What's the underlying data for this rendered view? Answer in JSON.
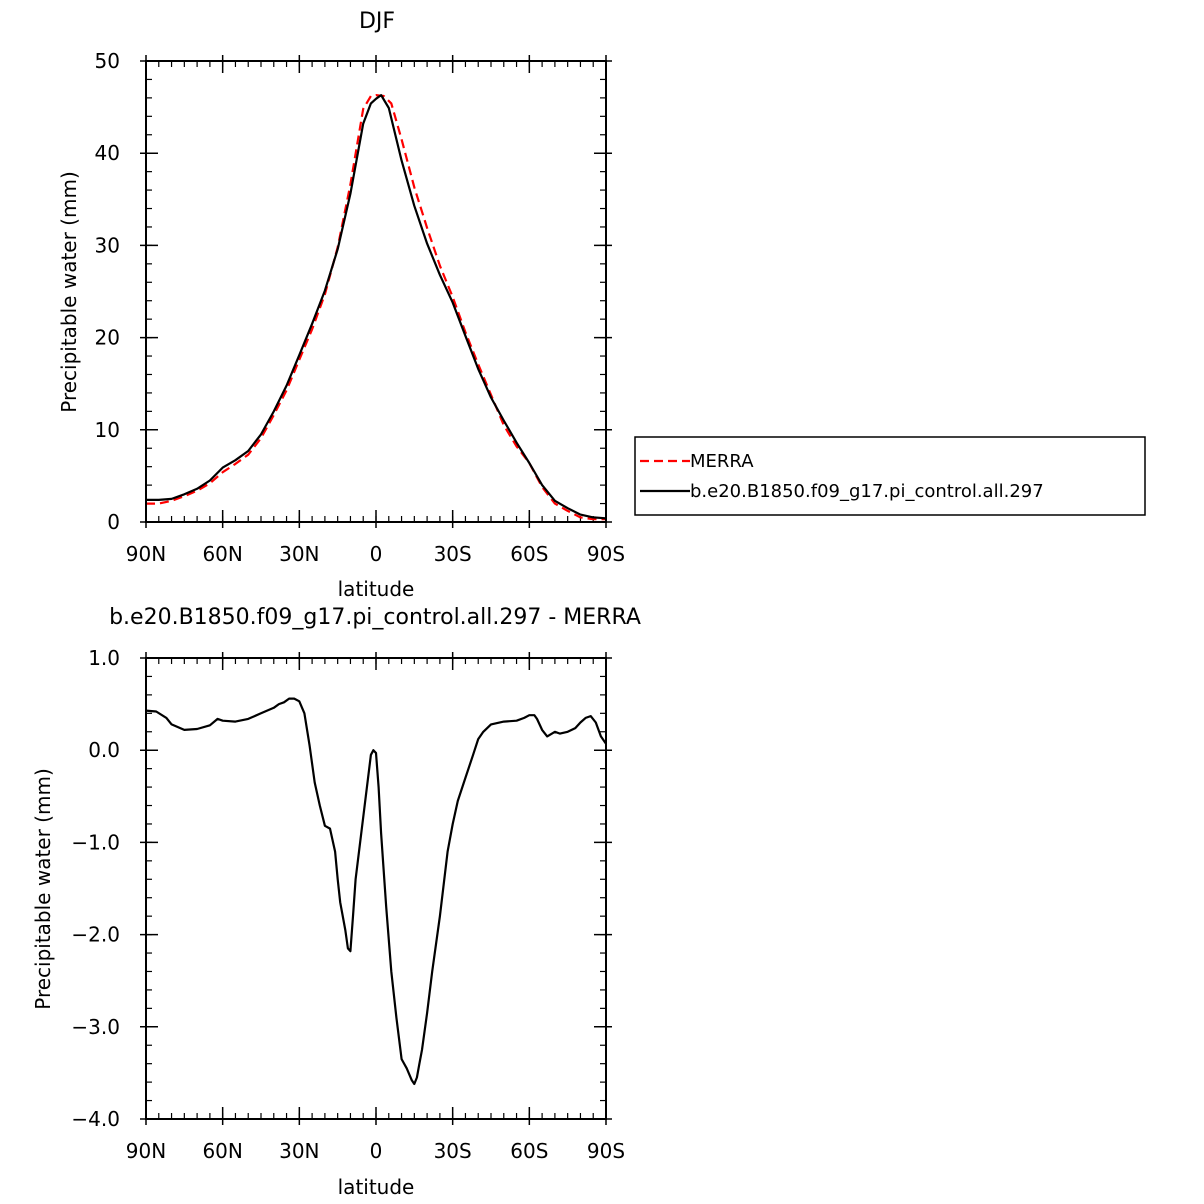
{
  "chart_data": [
    {
      "type": "line",
      "title": "DJF",
      "xlabel": "latitude",
      "ylabel": "Precipitable water (mm)",
      "xlim": [
        90,
        -90
      ],
      "ylim": [
        0,
        50
      ],
      "x_direction": "90N (left) to 90S (right); values are latitude in degrees, north positive",
      "xtick_values": [
        90,
        60,
        30,
        0,
        -30,
        -60,
        -90
      ],
      "xtick_labels": [
        "90N",
        "60N",
        "30N",
        "0",
        "30S",
        "60S",
        "90S"
      ],
      "ytick_values": [
        0,
        10,
        20,
        30,
        40,
        50
      ],
      "ytick_labels": [
        "0",
        "10",
        "20",
        "30",
        "40",
        "50"
      ],
      "legend_position": "right",
      "series": [
        {
          "name": "MERRA",
          "color": "#ff0000",
          "dash": "dashed",
          "x": [
            90,
            85,
            80,
            75,
            70,
            65,
            60,
            55,
            50,
            45,
            40,
            35,
            30,
            25,
            20,
            15,
            10,
            5,
            2,
            0,
            -3,
            -6,
            -10,
            -15,
            -20,
            -25,
            -30,
            -35,
            -40,
            -45,
            -50,
            -55,
            -60,
            -65,
            -70,
            -75,
            -80,
            -85,
            -90
          ],
          "y": [
            2.0,
            2.0,
            2.3,
            2.8,
            3.4,
            4.2,
            5.4,
            6.3,
            7.3,
            9.1,
            11.6,
            14.3,
            17.6,
            20.9,
            24.7,
            29.8,
            36.6,
            44.8,
            46.2,
            46.3,
            46.2,
            45.4,
            41.5,
            36.3,
            31.9,
            27.8,
            24.4,
            20.6,
            17.1,
            13.8,
            10.5,
            8.2,
            6.4,
            3.8,
            2.0,
            1.2,
            0.5,
            0.3,
            0.3
          ]
        },
        {
          "name": "b.e20.B1850.f09_g17.pi_control.all.297",
          "color": "#000000",
          "dash": "solid",
          "x": [
            90,
            85,
            80,
            75,
            70,
            65,
            60,
            55,
            50,
            45,
            40,
            35,
            30,
            25,
            20,
            15,
            10,
            5,
            2,
            0,
            -2,
            -5,
            -10,
            -15,
            -20,
            -25,
            -30,
            -35,
            -40,
            -45,
            -50,
            -55,
            -60,
            -65,
            -70,
            -75,
            -80,
            -85,
            -90
          ],
          "y": [
            2.4,
            2.4,
            2.5,
            3.0,
            3.6,
            4.5,
            5.9,
            6.7,
            7.7,
            9.5,
            12.0,
            14.8,
            18.1,
            21.5,
            25.1,
            29.6,
            35.6,
            43.2,
            45.4,
            45.9,
            46.3,
            44.9,
            39.2,
            34.3,
            30.2,
            26.8,
            23.8,
            20.2,
            16.6,
            13.5,
            11.0,
            8.6,
            6.4,
            4.0,
            2.3,
            1.5,
            0.8,
            0.5,
            0.4
          ]
        }
      ]
    },
    {
      "type": "line",
      "title": "b.e20.B1850.f09_g17.pi_control.all.297 - MERRA",
      "xlabel": "latitude",
      "ylabel": "Precipitable water (mm)",
      "xlim": [
        90,
        -90
      ],
      "ylim": [
        -4.0,
        1.0
      ],
      "xtick_values": [
        90,
        60,
        30,
        0,
        -30,
        -60,
        -90
      ],
      "xtick_labels": [
        "90N",
        "60N",
        "30N",
        "0",
        "30S",
        "60S",
        "90S"
      ],
      "ytick_values": [
        1.0,
        0.0,
        -1.0,
        -2.0,
        -3.0,
        -4.0
      ],
      "ytick_labels": [
        "1.0",
        "0.0",
        "−1.0",
        "−2.0",
        "−3.0",
        "−4.0"
      ],
      "series": [
        {
          "color": "#000000",
          "x": [
            90,
            86,
            82,
            80,
            75,
            70,
            65,
            62,
            60,
            55,
            50,
            45,
            40,
            38,
            36,
            34,
            33,
            32,
            30,
            28,
            26,
            24,
            22,
            20,
            18,
            16,
            15,
            14,
            12,
            11,
            10,
            9,
            8,
            6,
            4,
            2,
            1,
            0,
            -1,
            -2,
            -4,
            -6,
            -8,
            -10,
            -12,
            -14,
            -15,
            -16,
            -17,
            -18,
            -20,
            -22,
            -25,
            -28,
            -30,
            -32,
            -35,
            -38,
            -40,
            -42,
            -45,
            -50,
            -55,
            -58,
            -60,
            -62,
            -63,
            -65,
            -67,
            -70,
            -72,
            -75,
            -78,
            -80,
            -82,
            -84,
            -86,
            -88,
            -90
          ],
          "y": [
            0.43,
            0.42,
            0.35,
            0.28,
            0.22,
            0.23,
            0.27,
            0.34,
            0.32,
            0.31,
            0.34,
            0.4,
            0.46,
            0.5,
            0.52,
            0.56,
            0.56,
            0.56,
            0.53,
            0.4,
            0.05,
            -0.35,
            -0.6,
            -0.82,
            -0.85,
            -1.1,
            -1.4,
            -1.65,
            -1.95,
            -2.15,
            -2.18,
            -1.8,
            -1.4,
            -0.95,
            -0.5,
            -0.05,
            0.0,
            -0.03,
            -0.4,
            -0.9,
            -1.7,
            -2.4,
            -2.9,
            -3.35,
            -3.45,
            -3.58,
            -3.62,
            -3.55,
            -3.4,
            -3.25,
            -2.85,
            -2.4,
            -1.8,
            -1.1,
            -0.8,
            -0.55,
            -0.3,
            -0.05,
            0.12,
            0.2,
            0.28,
            0.31,
            0.32,
            0.35,
            0.38,
            0.38,
            0.34,
            0.22,
            0.15,
            0.2,
            0.18,
            0.2,
            0.24,
            0.3,
            0.35,
            0.37,
            0.3,
            0.15,
            0.07
          ]
        }
      ]
    }
  ]
}
